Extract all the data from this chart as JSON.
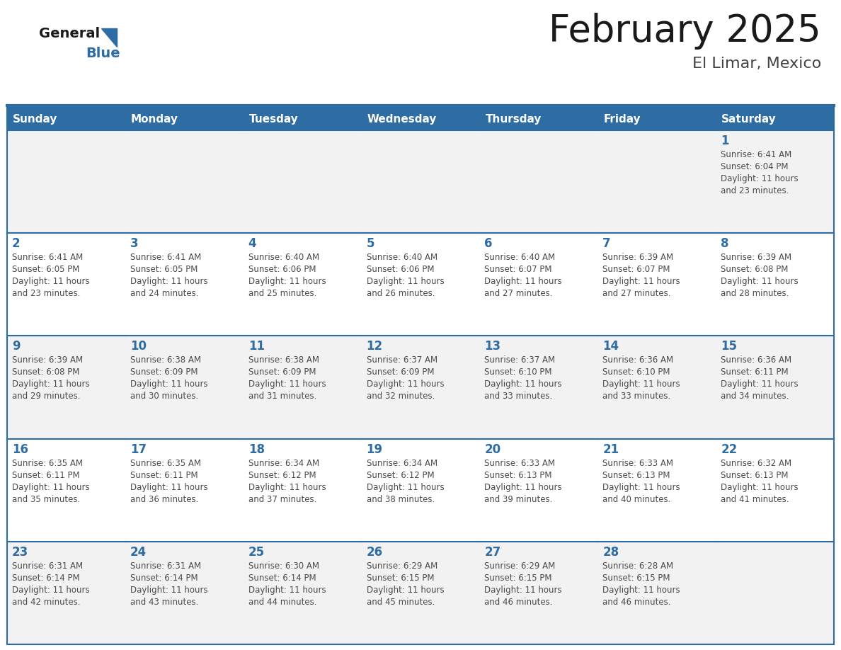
{
  "title": "February 2025",
  "subtitle": "El Limar, Mexico",
  "days_of_week": [
    "Sunday",
    "Monday",
    "Tuesday",
    "Wednesday",
    "Thursday",
    "Friday",
    "Saturday"
  ],
  "header_bg": "#2E6DA4",
  "header_text": "#FFFFFF",
  "cell_bg_even": "#F2F2F2",
  "cell_bg_odd": "#FFFFFF",
  "border_color": "#2E6DA4",
  "day_num_color": "#2E6DA4",
  "info_color": "#4a4a4a",
  "logo_general_color": "#1a1a1a",
  "logo_blue_color": "#2E6DA4",
  "background_color": "#FFFFFF",
  "calendar": [
    [
      null,
      null,
      null,
      null,
      null,
      null,
      {
        "day": 1,
        "sunrise": "6:41 AM",
        "sunset": "6:04 PM",
        "daylight": "11 hours and 23 minutes."
      }
    ],
    [
      {
        "day": 2,
        "sunrise": "6:41 AM",
        "sunset": "6:05 PM",
        "daylight": "11 hours and 23 minutes."
      },
      {
        "day": 3,
        "sunrise": "6:41 AM",
        "sunset": "6:05 PM",
        "daylight": "11 hours and 24 minutes."
      },
      {
        "day": 4,
        "sunrise": "6:40 AM",
        "sunset": "6:06 PM",
        "daylight": "11 hours and 25 minutes."
      },
      {
        "day": 5,
        "sunrise": "6:40 AM",
        "sunset": "6:06 PM",
        "daylight": "11 hours and 26 minutes."
      },
      {
        "day": 6,
        "sunrise": "6:40 AM",
        "sunset": "6:07 PM",
        "daylight": "11 hours and 27 minutes."
      },
      {
        "day": 7,
        "sunrise": "6:39 AM",
        "sunset": "6:07 PM",
        "daylight": "11 hours and 27 minutes."
      },
      {
        "day": 8,
        "sunrise": "6:39 AM",
        "sunset": "6:08 PM",
        "daylight": "11 hours and 28 minutes."
      }
    ],
    [
      {
        "day": 9,
        "sunrise": "6:39 AM",
        "sunset": "6:08 PM",
        "daylight": "11 hours and 29 minutes."
      },
      {
        "day": 10,
        "sunrise": "6:38 AM",
        "sunset": "6:09 PM",
        "daylight": "11 hours and 30 minutes."
      },
      {
        "day": 11,
        "sunrise": "6:38 AM",
        "sunset": "6:09 PM",
        "daylight": "11 hours and 31 minutes."
      },
      {
        "day": 12,
        "sunrise": "6:37 AM",
        "sunset": "6:09 PM",
        "daylight": "11 hours and 32 minutes."
      },
      {
        "day": 13,
        "sunrise": "6:37 AM",
        "sunset": "6:10 PM",
        "daylight": "11 hours and 33 minutes."
      },
      {
        "day": 14,
        "sunrise": "6:36 AM",
        "sunset": "6:10 PM",
        "daylight": "11 hours and 33 minutes."
      },
      {
        "day": 15,
        "sunrise": "6:36 AM",
        "sunset": "6:11 PM",
        "daylight": "11 hours and 34 minutes."
      }
    ],
    [
      {
        "day": 16,
        "sunrise": "6:35 AM",
        "sunset": "6:11 PM",
        "daylight": "11 hours and 35 minutes."
      },
      {
        "day": 17,
        "sunrise": "6:35 AM",
        "sunset": "6:11 PM",
        "daylight": "11 hours and 36 minutes."
      },
      {
        "day": 18,
        "sunrise": "6:34 AM",
        "sunset": "6:12 PM",
        "daylight": "11 hours and 37 minutes."
      },
      {
        "day": 19,
        "sunrise": "6:34 AM",
        "sunset": "6:12 PM",
        "daylight": "11 hours and 38 minutes."
      },
      {
        "day": 20,
        "sunrise": "6:33 AM",
        "sunset": "6:13 PM",
        "daylight": "11 hours and 39 minutes."
      },
      {
        "day": 21,
        "sunrise": "6:33 AM",
        "sunset": "6:13 PM",
        "daylight": "11 hours and 40 minutes."
      },
      {
        "day": 22,
        "sunrise": "6:32 AM",
        "sunset": "6:13 PM",
        "daylight": "11 hours and 41 minutes."
      }
    ],
    [
      {
        "day": 23,
        "sunrise": "6:31 AM",
        "sunset": "6:14 PM",
        "daylight": "11 hours and 42 minutes."
      },
      {
        "day": 24,
        "sunrise": "6:31 AM",
        "sunset": "6:14 PM",
        "daylight": "11 hours and 43 minutes."
      },
      {
        "day": 25,
        "sunrise": "6:30 AM",
        "sunset": "6:14 PM",
        "daylight": "11 hours and 44 minutes."
      },
      {
        "day": 26,
        "sunrise": "6:29 AM",
        "sunset": "6:15 PM",
        "daylight": "11 hours and 45 minutes."
      },
      {
        "day": 27,
        "sunrise": "6:29 AM",
        "sunset": "6:15 PM",
        "daylight": "11 hours and 46 minutes."
      },
      {
        "day": 28,
        "sunrise": "6:28 AM",
        "sunset": "6:15 PM",
        "daylight": "11 hours and 46 minutes."
      },
      null
    ]
  ]
}
